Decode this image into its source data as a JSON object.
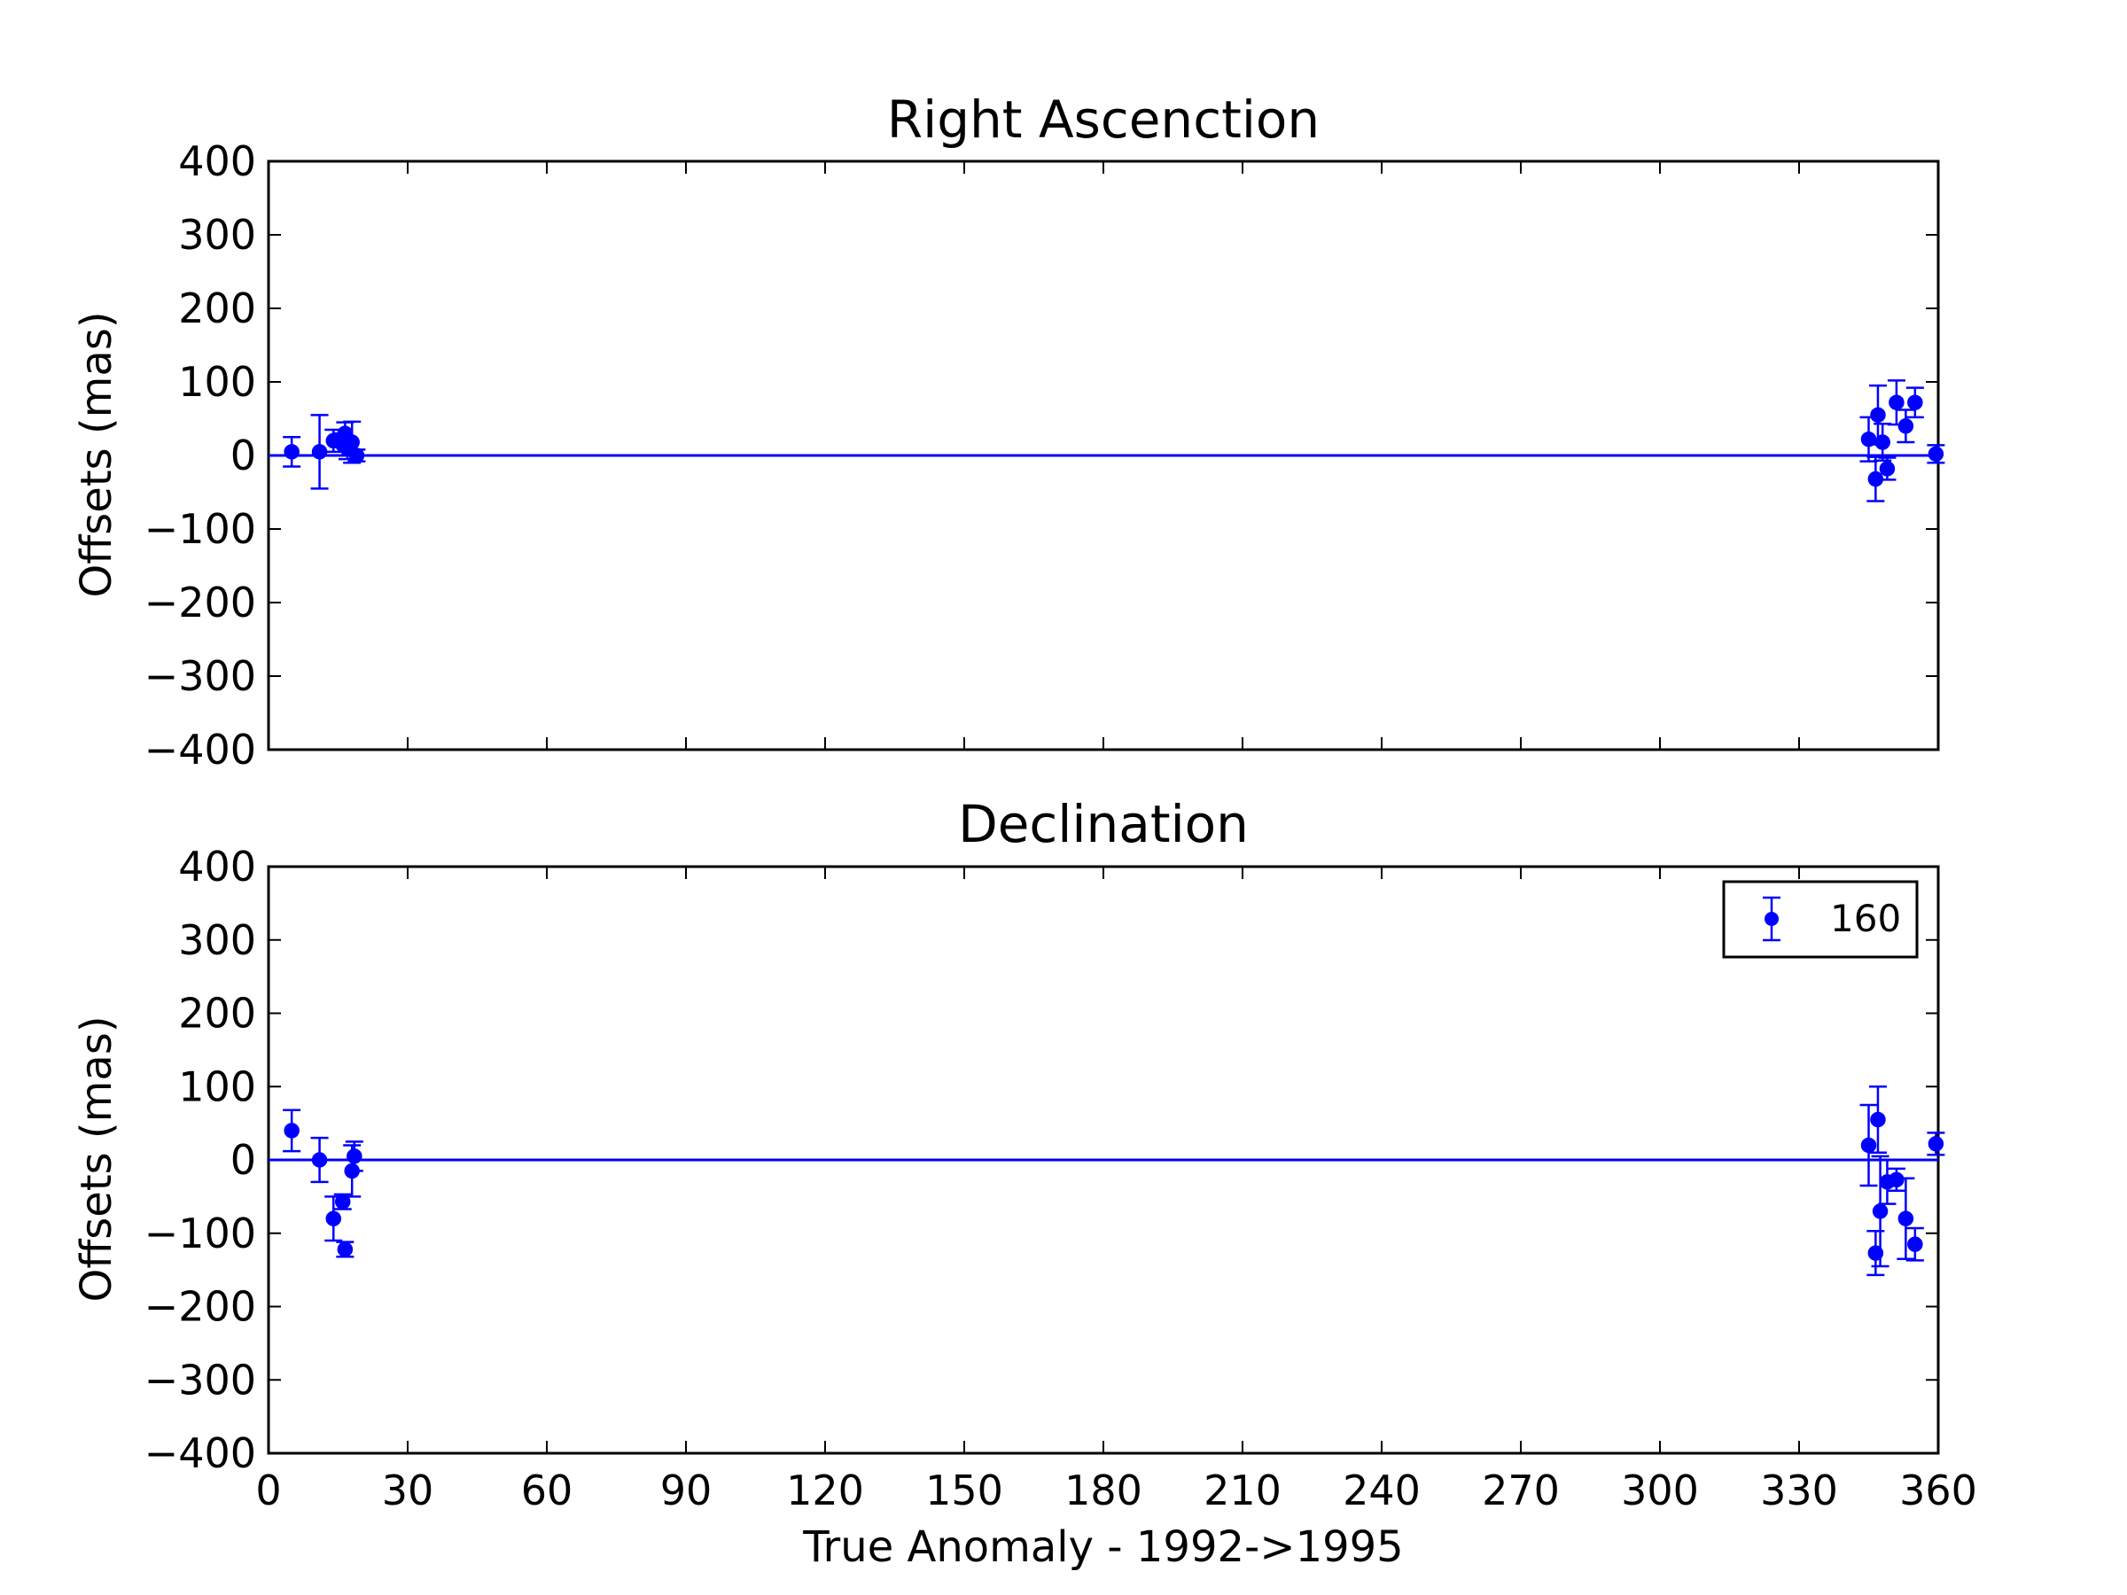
{
  "figure": {
    "xlabel": "True Anomaly - 1992->1995"
  },
  "chart_data": [
    {
      "type": "scatter",
      "title": "Right Ascenction",
      "xlabel": "",
      "ylabel": "Offsets (mas)",
      "xlim": [
        0,
        360
      ],
      "ylim": [
        -400,
        400
      ],
      "xticks": [
        "0",
        "30",
        "60",
        "90",
        "120",
        "150",
        "180",
        "210",
        "240",
        "270",
        "300",
        "330",
        "360"
      ],
      "yticks": [
        "400",
        "300",
        "200",
        "100",
        "0",
        "−100",
        "−200",
        "−300",
        "−400"
      ],
      "show_xtick_labels": false,
      "grid": false,
      "color": "#0000ff",
      "zero_line": 0,
      "series": [
        {
          "points": [
            {
              "x": 5,
              "y": 5,
              "err": 20
            },
            {
              "x": 11,
              "y": 5,
              "err": 50
            },
            {
              "x": 14,
              "y": 20,
              "err": 15
            },
            {
              "x": 16,
              "y": 15,
              "err": 15
            },
            {
              "x": 16.5,
              "y": 30,
              "err": 15
            },
            {
              "x": 17,
              "y": 10,
              "err": 15
            },
            {
              "x": 18,
              "y": 18,
              "err": 28
            },
            {
              "x": 19,
              "y": 0,
              "err": 8
            },
            {
              "x": 345,
              "y": 22,
              "err": 30
            },
            {
              "x": 346.5,
              "y": -32,
              "err": 30
            },
            {
              "x": 347,
              "y": 55,
              "err": 40
            },
            {
              "x": 348,
              "y": 18,
              "err": 25
            },
            {
              "x": 349,
              "y": -18,
              "err": 15
            },
            {
              "x": 351,
              "y": 72,
              "err": 30
            },
            {
              "x": 353,
              "y": 40,
              "err": 22
            },
            {
              "x": 355,
              "y": 72,
              "err": 20
            },
            {
              "x": 359.5,
              "y": 2,
              "err": 12
            }
          ]
        }
      ]
    },
    {
      "type": "scatter",
      "title": "Declination",
      "xlabel": "True Anomaly - 1992->1995",
      "ylabel": "Offsets (mas)",
      "xlim": [
        0,
        360
      ],
      "ylim": [
        -400,
        400
      ],
      "xticks": [
        "0",
        "30",
        "60",
        "90",
        "120",
        "150",
        "180",
        "210",
        "240",
        "270",
        "300",
        "330",
        "360"
      ],
      "yticks": [
        "400",
        "300",
        "200",
        "100",
        "0",
        "−100",
        "−200",
        "−300",
        "−400"
      ],
      "show_xtick_labels": true,
      "grid": false,
      "color": "#0000ff",
      "zero_line": 0,
      "legend": {
        "position": "top-right",
        "entries": [
          "160"
        ]
      },
      "series": [
        {
          "name": "160",
          "points": [
            {
              "x": 5,
              "y": 40,
              "err": 28
            },
            {
              "x": 11,
              "y": 0,
              "err": 30
            },
            {
              "x": 14,
              "y": -80,
              "err": 30
            },
            {
              "x": 16,
              "y": -57,
              "err": 10
            },
            {
              "x": 16.5,
              "y": -122,
              "err": 10
            },
            {
              "x": 18,
              "y": -15,
              "err": 35
            },
            {
              "x": 18.5,
              "y": 5,
              "err": 20
            },
            {
              "x": 345,
              "y": 20,
              "err": 55
            },
            {
              "x": 346.5,
              "y": -127,
              "err": 30
            },
            {
              "x": 347,
              "y": 55,
              "err": 45
            },
            {
              "x": 347.5,
              "y": -70,
              "err": 75
            },
            {
              "x": 349,
              "y": -30,
              "err": 30
            },
            {
              "x": 351,
              "y": -27,
              "err": 15
            },
            {
              "x": 353,
              "y": -80,
              "err": 55
            },
            {
              "x": 355,
              "y": -115,
              "err": 22
            },
            {
              "x": 359.5,
              "y": 22,
              "err": 15
            }
          ]
        }
      ]
    }
  ]
}
